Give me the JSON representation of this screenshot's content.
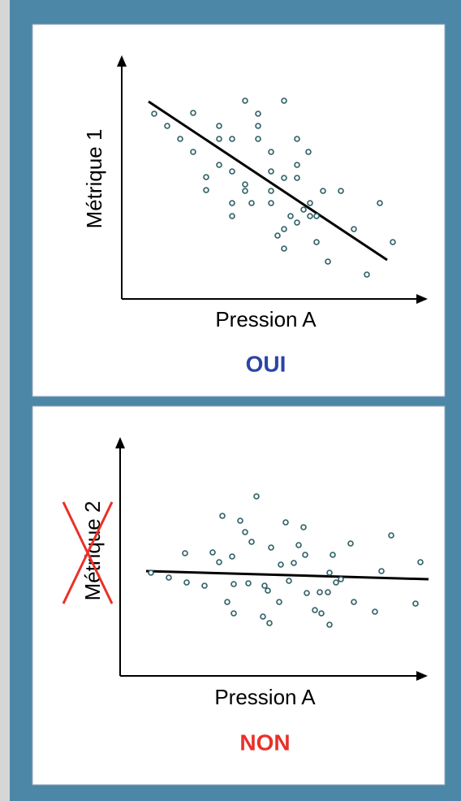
{
  "chart_data": [
    {
      "type": "scatter",
      "y_label": "Métrique 1",
      "x_label": "Pression A",
      "verdict": "OUI",
      "verdict_color": "#2b45a6",
      "point_color": "#2f5f66",
      "line_color": "#000000",
      "crossed_out": false,
      "xlim": [
        0,
        375
      ],
      "ylim": [
        0,
        298
      ],
      "x": [
        40,
        56,
        72,
        88,
        88,
        104,
        104,
        120,
        120,
        120,
        136,
        136,
        136,
        136,
        152,
        152,
        152,
        160,
        168,
        168,
        168,
        184,
        184,
        184,
        184,
        200,
        200,
        200,
        200,
        192,
        208,
        216,
        216,
        216,
        216,
        224,
        232,
        230,
        232,
        240,
        240,
        248,
        254,
        270,
        286,
        302,
        318,
        334
      ],
      "y": [
        228,
        213,
        197,
        229,
        181,
        150,
        134,
        213,
        197,
        165,
        197,
        157,
        118,
        102,
        244,
        141,
        133,
        118,
        228,
        213,
        197,
        181,
        157,
        133,
        118,
        244,
        149,
        86,
        62,
        78,
        102,
        197,
        165,
        149,
        94,
        110,
        102,
        181,
        118,
        102,
        70,
        133,
        46,
        133,
        86,
        30,
        118,
        70
      ],
      "trend": {
        "x": [
          33,
          327
        ],
        "y": [
          243,
          48
        ]
      }
    },
    {
      "type": "scatter",
      "y_label": "Métrique 2",
      "x_label": "Pression A",
      "verdict": "NON",
      "verdict_color": "#e8312a",
      "point_color": "#2f5f66",
      "line_color": "#000000",
      "crossed_out": true,
      "cross_color": "#e8312a",
      "xlim": [
        0,
        377
      ],
      "ylim": [
        0,
        292
      ],
      "x": [
        38,
        60,
        80,
        82,
        104,
        114,
        122,
        126,
        132,
        138,
        140,
        140,
        148,
        154,
        158,
        162,
        168,
        176,
        178,
        182,
        184,
        186,
        196,
        198,
        204,
        208,
        214,
        220,
        226,
        228,
        230,
        240,
        246,
        248,
        256,
        258,
        258,
        262,
        266,
        272,
        284,
        288,
        314,
        322,
        334,
        364,
        370
      ],
      "y": [
        127,
        121,
        151,
        115,
        111,
        152,
        140,
        197,
        91,
        147,
        113,
        77,
        191,
        177,
        114,
        165,
        221,
        73,
        111,
        105,
        65,
        158,
        91,
        137,
        189,
        117,
        139,
        161,
        183,
        149,
        102,
        81,
        103,
        77,
        103,
        63,
        127,
        149,
        115,
        119,
        163,
        91,
        79,
        129,
        173,
        89,
        140
      ],
      "trend": {
        "x": [
          32,
          380
        ],
        "y": [
          129,
          119
        ]
      }
    }
  ]
}
